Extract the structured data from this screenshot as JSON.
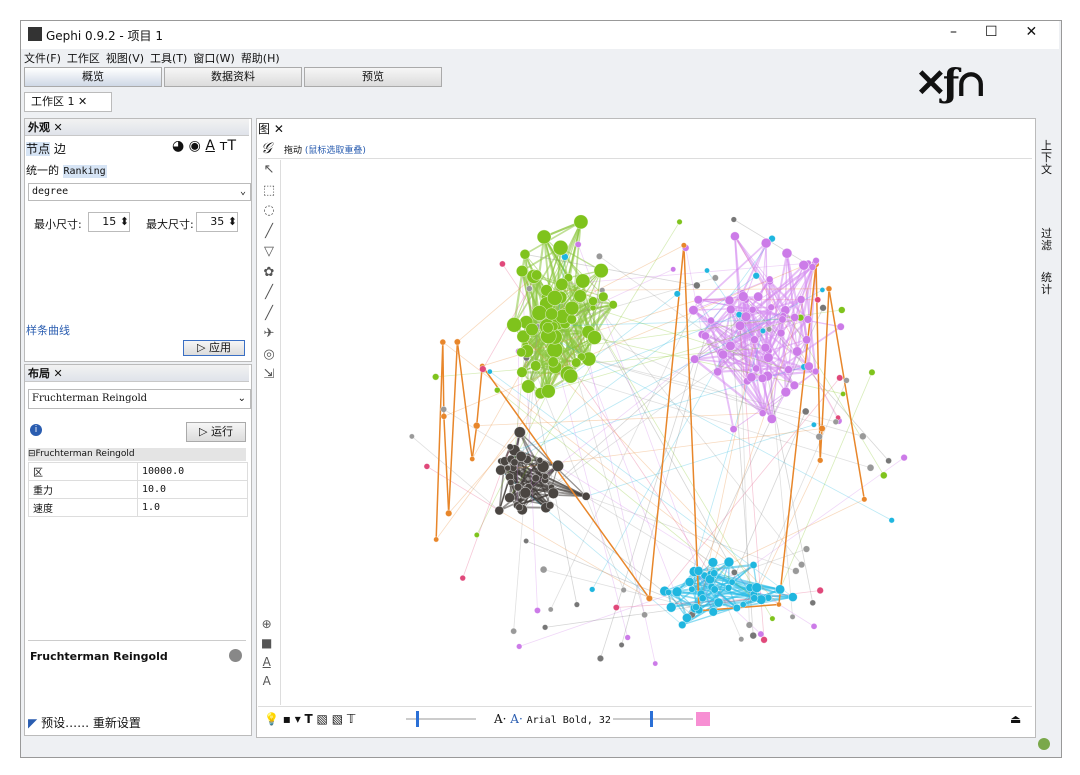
{
  "window": {
    "title": "Gephi 0.9.2 - 项目 1"
  },
  "menu": [
    "文件(F)",
    "工作区",
    "视图(V)",
    "工具(T)",
    "窗口(W)",
    "帮助(H)"
  ],
  "tabs": [
    "概览",
    "数据资料",
    "预览"
  ],
  "workspace_tab": "工作区 1",
  "appearance": {
    "title": "外观",
    "node_edge": [
      "节点",
      "边"
    ],
    "modes": [
      "统一的",
      "Ranking"
    ],
    "attribute": "degree",
    "min_label": "最小尺寸:",
    "min_value": "15",
    "max_label": "最大尺寸:",
    "max_value": "35",
    "spline": "样条曲线",
    "apply": "应用"
  },
  "layout": {
    "title": "布局",
    "algorithm": "Fruchterman Reingold",
    "run": "运行",
    "group": "Fruchterman Reingold",
    "properties": [
      [
        "区",
        "10000.0"
      ],
      [
        "重力",
        "10.0"
      ],
      [
        "速度",
        "1.0"
      ]
    ],
    "description_title": "Fruchterman Reingold",
    "presets": "预设……",
    "reset": "重新设置"
  },
  "graph": {
    "tab": "图",
    "drag": "拖动",
    "hint": "(鼠标选取重叠)",
    "font": "Arial Bold, 32"
  },
  "side": [
    "上下文",
    "过滤",
    "统计"
  ]
}
